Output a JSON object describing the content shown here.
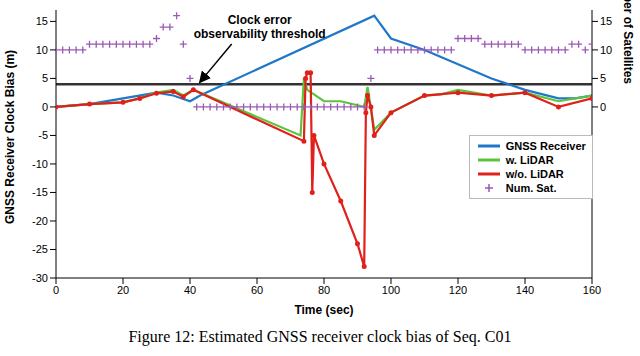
{
  "chart_data": {
    "type": "line",
    "caption": "Figure 12: Estimated GNSS receiver clock bias of Seq. C01",
    "x_label": "Time (sec)",
    "y_label": "GNSS Receiver Clock Bias (m)",
    "y2_label": "Number of Satellites",
    "xlim": [
      0,
      160
    ],
    "xticks": [
      0,
      20,
      40,
      60,
      80,
      100,
      120,
      140,
      160
    ],
    "ylim": [
      -30,
      17
    ],
    "yticks": [
      -30,
      -25,
      -20,
      -15,
      -10,
      -5,
      0,
      5,
      10,
      15
    ],
    "y2lim": [
      -30,
      17
    ],
    "y2ticks": [
      0,
      5,
      10,
      15
    ],
    "grid": false,
    "legend": "lower right",
    "reference_line": {
      "y": 4,
      "label": "Clock error observability threshold",
      "color": "#333333"
    },
    "series": [
      {
        "name": "GNSS Receiver",
        "type": "line",
        "color": "#1f77c8",
        "marker": "none",
        "x": [
          0,
          10,
          20,
          30,
          35,
          40,
          43,
          95,
          100,
          110,
          120,
          130,
          140,
          150,
          155,
          160
        ],
        "values": [
          0,
          0.5,
          1.5,
          2.5,
          2,
          1,
          2,
          16,
          12,
          10,
          7.5,
          5,
          3,
          1.5,
          1.5,
          2
        ]
      },
      {
        "name": "w. LiDAR",
        "type": "line",
        "color": "#5cc43a",
        "marker": "none",
        "x": [
          0,
          10,
          20,
          25,
          30,
          35,
          38,
          41,
          73,
          74,
          75,
          80,
          85,
          90,
          92,
          93,
          95,
          100,
          110,
          115,
          120,
          130,
          140,
          150,
          160
        ],
        "values": [
          0,
          0.5,
          0.8,
          1.5,
          2.5,
          3,
          2,
          3,
          -5,
          5,
          3,
          1,
          1,
          0.3,
          0,
          3.5,
          -4,
          -1,
          2,
          2.2,
          3,
          2,
          2.5,
          1,
          2
        ]
      },
      {
        "name": "w/o. LiDAR",
        "type": "line",
        "color": "#e0201b",
        "marker": "dot",
        "x": [
          0,
          10,
          20,
          25,
          30,
          35,
          38,
          41,
          74,
          74.5,
          75,
          76,
          76.5,
          77,
          80,
          85,
          90,
          92,
          92.5,
          93,
          94,
          95,
          100,
          110,
          120,
          130,
          140,
          150,
          160
        ],
        "values": [
          0,
          0.5,
          0.8,
          1.5,
          2.4,
          2.7,
          1.8,
          3,
          -6,
          5,
          6,
          6,
          -15,
          -5,
          -10,
          -16.5,
          -24,
          -28,
          -1,
          2,
          0,
          -5,
          -1,
          2,
          2.5,
          2,
          2.5,
          0,
          1.5
        ]
      },
      {
        "name": "Num. Sat.",
        "type": "scatter",
        "color": "#9b59b6",
        "marker": "plus",
        "axis": "y2",
        "x": [
          0,
          2,
          4,
          6,
          8,
          10,
          12,
          14,
          16,
          18,
          20,
          22,
          24,
          26,
          28,
          30,
          32,
          34,
          36,
          38,
          40,
          42,
          44,
          46,
          48,
          50,
          52,
          54,
          56,
          58,
          60,
          62,
          64,
          66,
          68,
          70,
          72,
          74,
          76,
          78,
          80,
          82,
          84,
          86,
          88,
          90,
          92,
          94,
          96,
          98,
          100,
          102,
          104,
          106,
          108,
          110,
          112,
          114,
          116,
          118,
          120,
          122,
          124,
          126,
          128,
          130,
          132,
          134,
          136,
          138,
          140,
          142,
          144,
          146,
          148,
          150,
          152,
          154,
          156,
          158,
          160
        ],
        "values": [
          10,
          10,
          10,
          10,
          10,
          11,
          11,
          11,
          11,
          11,
          11,
          11,
          11,
          11,
          11,
          12,
          14,
          14,
          16,
          11,
          5,
          0,
          0,
          0,
          0,
          0,
          0,
          0,
          0,
          0,
          0,
          0,
          0,
          0,
          0,
          0,
          0,
          0,
          0,
          0,
          0,
          0,
          0,
          0,
          0,
          0,
          0,
          5,
          10,
          10,
          10,
          10,
          10,
          10,
          10,
          10,
          10,
          10,
          10,
          10,
          12,
          12,
          12,
          12,
          11,
          11,
          11,
          11,
          11,
          11,
          10,
          10,
          10,
          10,
          10,
          10,
          10,
          11,
          11,
          10,
          11
        ]
      }
    ]
  }
}
